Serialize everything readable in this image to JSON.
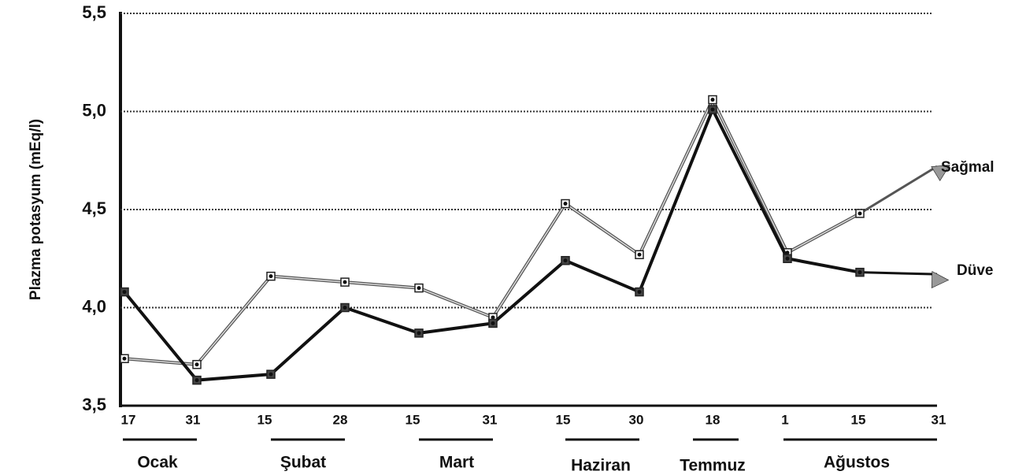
{
  "chart_data": {
    "type": "line",
    "y_label": "Plazma potasyum (mEq/l)",
    "categories": [
      "17",
      "31",
      "15",
      "28",
      "15",
      "31",
      "15",
      "30",
      "18",
      "1",
      "15",
      "31"
    ],
    "months": [
      "Ocak",
      "Şubat",
      "Mart",
      "Haziran",
      "Temmuz",
      "Ağustos"
    ],
    "series": [
      {
        "name": "Sağmal",
        "color": "#8a8a8a",
        "values": [
          3.74,
          3.71,
          4.16,
          4.13,
          4.1,
          3.95,
          4.53,
          4.27,
          5.06,
          4.28,
          4.48,
          4.72
        ]
      },
      {
        "name": "Düve",
        "color": "#111111",
        "values": [
          4.08,
          3.63,
          3.66,
          4.0,
          3.87,
          3.92,
          4.24,
          4.08,
          5.01,
          4.25,
          4.18,
          4.17
        ]
      }
    ],
    "ylim": [
      3.5,
      5.5
    ],
    "yticks": [
      {
        "value": 3.5,
        "label": "3,5"
      },
      {
        "value": 4.0,
        "label": "4,0"
      },
      {
        "value": 4.5,
        "label": "4,5"
      },
      {
        "value": 5.0,
        "label": "5,0"
      },
      {
        "value": 5.5,
        "label": "5,5"
      }
    ],
    "grid": true
  }
}
